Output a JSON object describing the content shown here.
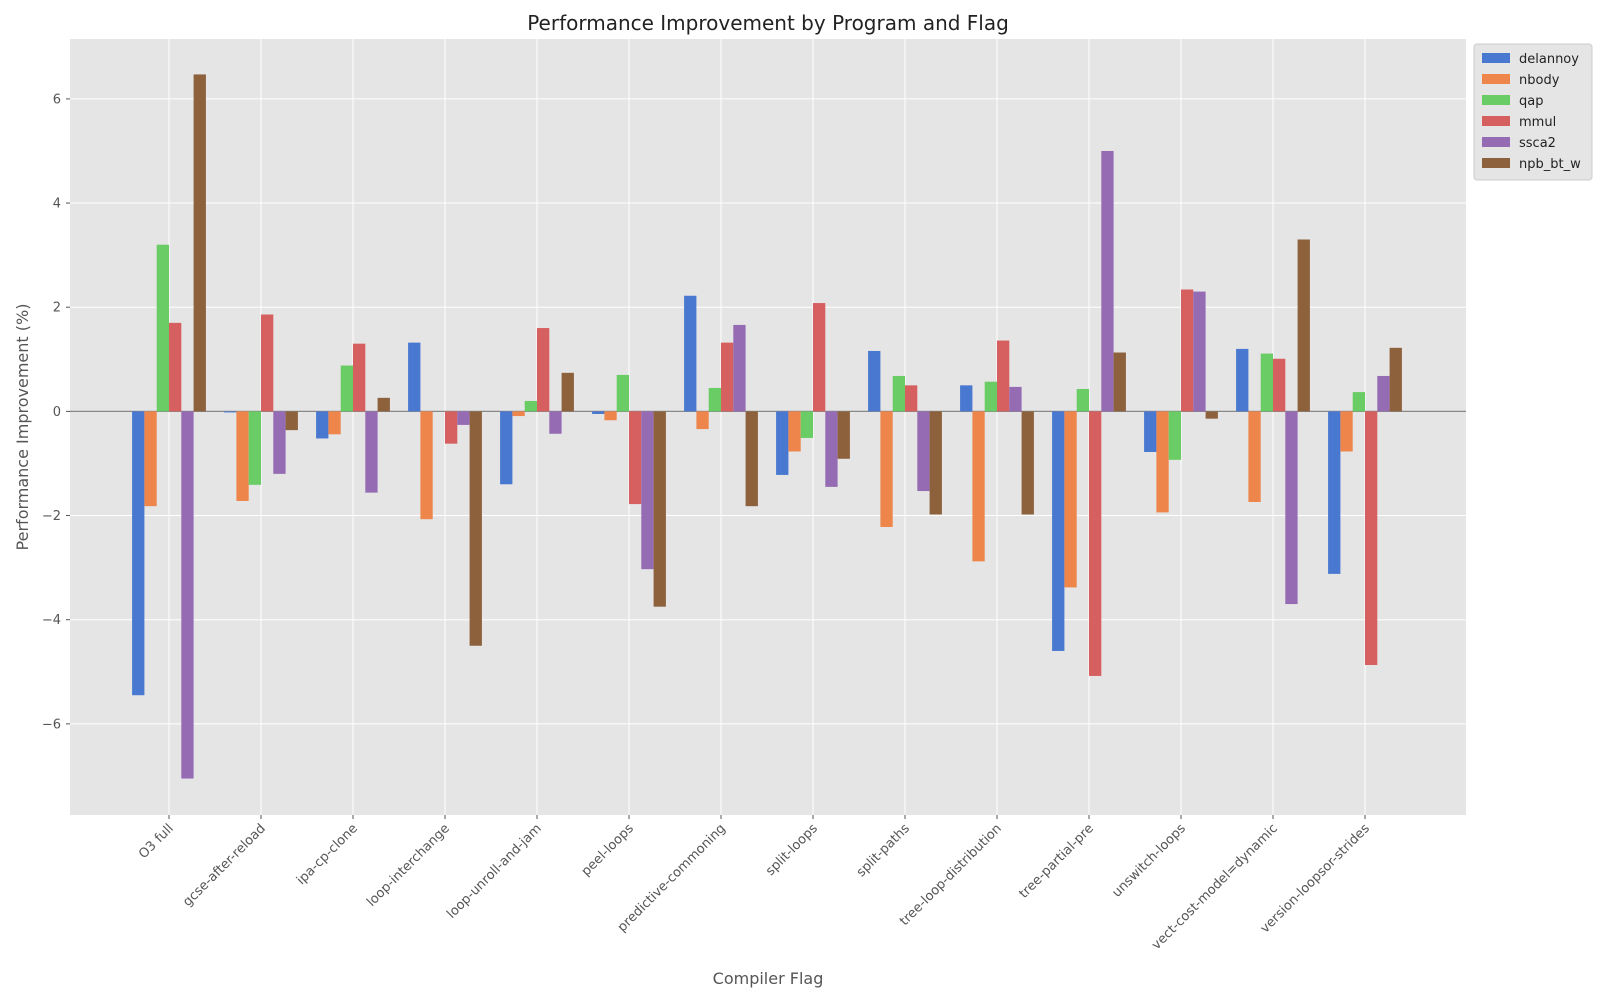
{
  "chart_data": {
    "type": "bar",
    "title": "Performance Improvement by Program and Flag",
    "xlabel": "Compiler Flag",
    "ylabel": "Performance Improvement (%)",
    "ylim": [
      -7.75,
      7.15
    ],
    "yticks": [
      -6,
      -4,
      -2,
      0,
      2,
      4,
      6
    ],
    "ytick_labels": [
      "−6",
      "−4",
      "−2",
      "0",
      "2",
      "4",
      "6"
    ],
    "grid": true,
    "legend_position": "top-right",
    "categories": [
      "O3 full",
      "gcse-after-reload",
      "ipa-cp-clone",
      "loop-interchange",
      "loop-unroll-and-jam",
      "peel-loops",
      "predictive-commoning",
      "split-loops",
      "split-paths",
      "tree-loop-distribution",
      "tree-partial-pre",
      "unswitch-loops",
      "vect-cost-model=dynamic",
      "version-loopsor-strides"
    ],
    "series": [
      {
        "name": "delannoy",
        "color": "#4878d0",
        "values": [
          -5.45,
          -0.02,
          -0.52,
          1.32,
          -1.4,
          -0.05,
          2.22,
          -1.22,
          1.16,
          0.5,
          -4.6,
          -0.78,
          1.2,
          -3.12
        ]
      },
      {
        "name": "nbody",
        "color": "#ee854a",
        "values": [
          -1.82,
          -1.72,
          -0.44,
          -2.07,
          -0.09,
          -0.17,
          -0.34,
          -0.77,
          -2.22,
          -2.88,
          -3.38,
          -1.94,
          -1.74,
          -0.77
        ]
      },
      {
        "name": "qap",
        "color": "#6acc64",
        "values": [
          3.2,
          -1.41,
          0.88,
          0.0,
          0.2,
          0.7,
          0.45,
          -0.51,
          0.68,
          0.57,
          0.43,
          -0.93,
          1.11,
          0.37
        ]
      },
      {
        "name": "mmul",
        "color": "#d65f5f",
        "values": [
          1.7,
          1.86,
          1.3,
          -0.62,
          1.6,
          -1.78,
          1.32,
          2.08,
          0.5,
          1.36,
          -5.08,
          2.34,
          1.01,
          -4.87
        ]
      },
      {
        "name": "ssca2",
        "color": "#956cb4",
        "values": [
          -7.05,
          -1.2,
          -1.56,
          -0.26,
          -0.43,
          -3.03,
          1.66,
          -1.45,
          -1.53,
          0.47,
          5.0,
          2.3,
          -3.7,
          0.68
        ]
      },
      {
        "name": "npb_bt_w",
        "color": "#8c613c",
        "values": [
          6.47,
          -0.36,
          0.26,
          -4.5,
          0.74,
          -3.75,
          -1.82,
          -0.91,
          -1.98,
          -1.98,
          1.13,
          -0.14,
          3.3,
          1.22
        ]
      }
    ]
  }
}
